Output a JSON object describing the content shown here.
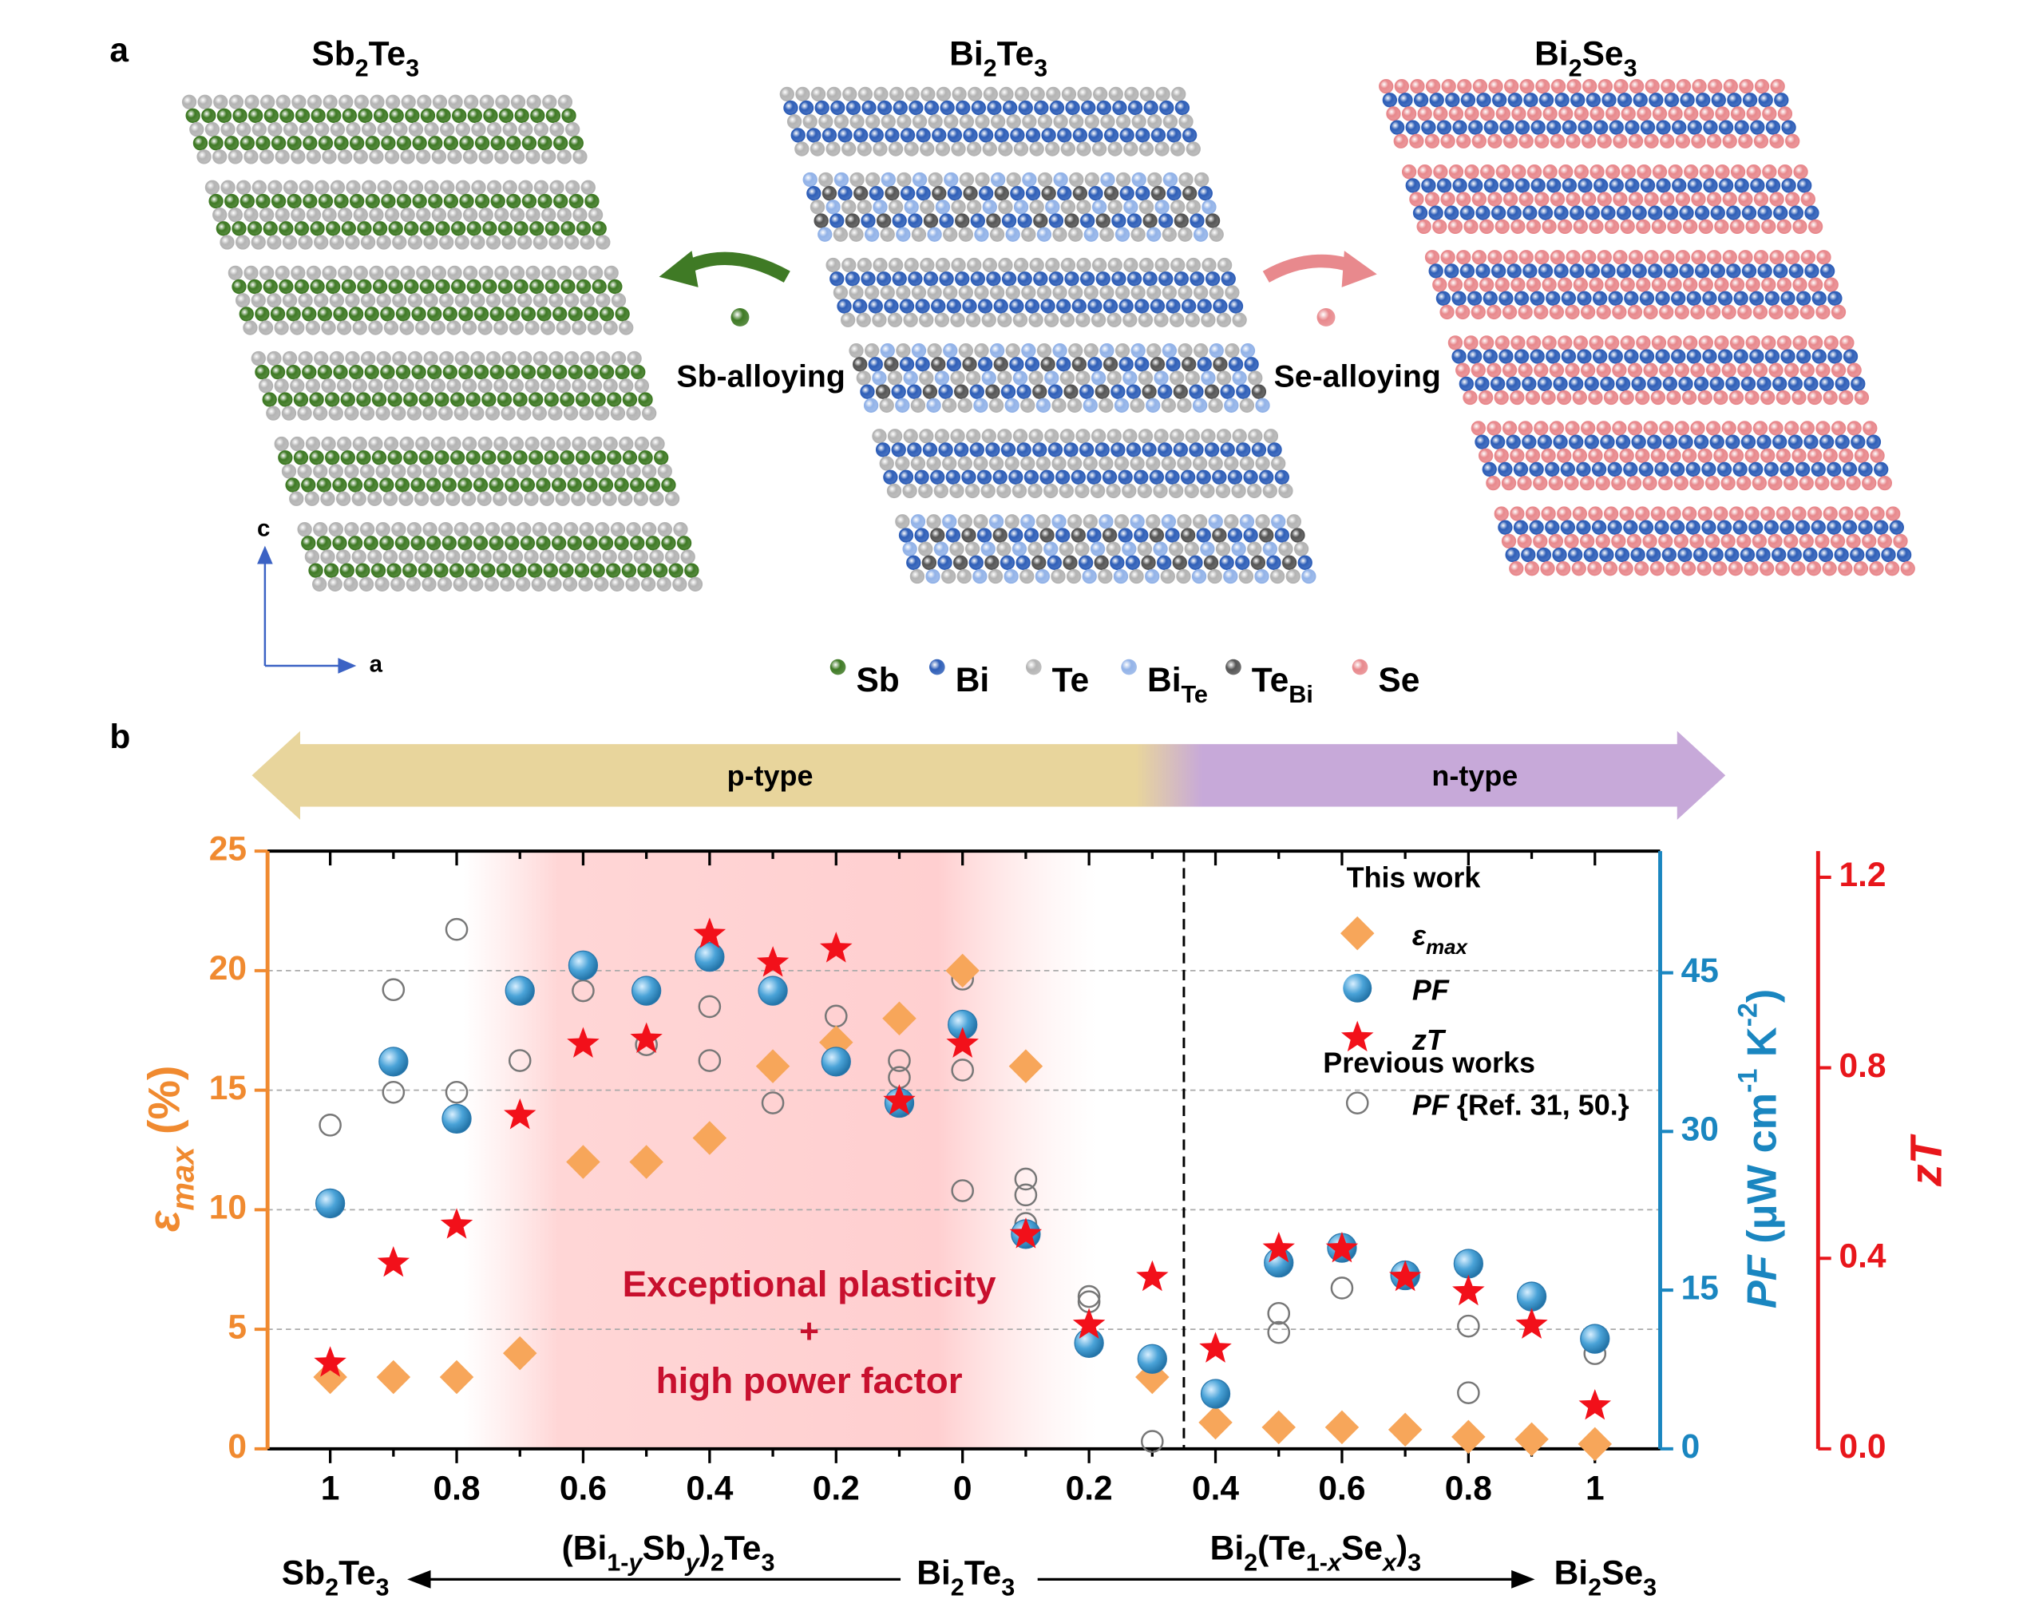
{
  "panel_labels": [
    "a",
    "b"
  ],
  "structures": [
    {
      "name": [
        [
          "Sb",
          ""
        ],
        [
          "2",
          "sub"
        ],
        [
          "Te",
          ""
        ],
        [
          "3",
          "sub"
        ]
      ]
    },
    {
      "name": [
        [
          "Bi",
          ""
        ],
        [
          "2",
          "sub"
        ],
        [
          "Te",
          ""
        ],
        [
          "3",
          "sub"
        ]
      ]
    },
    {
      "name": [
        [
          "Bi",
          ""
        ],
        [
          "2",
          "sub"
        ],
        [
          "Se",
          ""
        ],
        [
          "3",
          "sub"
        ]
      ]
    }
  ],
  "alloying": [
    "Sb-alloying",
    "Se-alloying"
  ],
  "axis_names": [
    "c",
    "a"
  ],
  "elements": [
    {
      "name": [
        [
          "Sb",
          ""
        ]
      ],
      "color": "#3f7a25"
    },
    {
      "name": [
        [
          "Bi",
          ""
        ]
      ],
      "color": "#2f5fb8"
    },
    {
      "name": [
        [
          "Te",
          ""
        ]
      ],
      "color": "#b4b4b4"
    },
    {
      "name": [
        [
          "Bi",
          ""
        ],
        [
          "Te",
          "sub"
        ]
      ],
      "color": "#93b3e8"
    },
    {
      "name": [
        [
          "Te",
          ""
        ],
        [
          "Bi",
          "sub"
        ]
      ],
      "color": "#555555"
    },
    {
      "name": [
        [
          "Se",
          ""
        ]
      ],
      "color": "#e8898d"
    }
  ],
  "chart_data": {
    "type": "scatter",
    "type_labels": [
      "p-type",
      "n-type"
    ],
    "type_colors": [
      "#e8d59c",
      "#c7a9d9"
    ],
    "annotation": [
      "Exceptional plasticity",
      "+",
      "high power factor"
    ],
    "categories": [
      "1",
      null,
      "0.8",
      null,
      "0.6",
      null,
      "0.4",
      null,
      "0.2",
      null,
      "0",
      null,
      "0.2",
      null,
      "0.4",
      null,
      "0.6",
      null,
      "0.8",
      null,
      "1"
    ],
    "ylabel": [
      [
        "ε",
        "i"
      ],
      [
        "max",
        "subi"
      ],
      [
        " (%)",
        ""
      ]
    ],
    "y2label": [
      [
        "PF",
        "i"
      ],
      [
        " (μW cm",
        ""
      ],
      [
        "-1",
        "sup"
      ],
      [
        " K",
        ""
      ],
      [
        "-2",
        "sup"
      ],
      [
        ")",
        ""
      ]
    ],
    "y3label": [
      [
        "zT",
        "i"
      ]
    ],
    "ylim": [
      0,
      25
    ],
    "yticks": [
      0,
      5,
      10,
      15,
      20,
      25
    ],
    "y2lim": [
      0,
      56.5
    ],
    "y2ticks": [
      0,
      15,
      30,
      45
    ],
    "y3lim": [
      0,
      1.255
    ],
    "y3ticks": [
      {
        "value": 0,
        "label": "0.0"
      },
      {
        "value": 0.4,
        "label": "0.4"
      },
      {
        "value": 0.8,
        "label": "0.8"
      },
      {
        "value": 1.2,
        "label": "1.2"
      }
    ],
    "axis_colors": [
      "#f08a30",
      "#1a86c0",
      "#e8161b"
    ],
    "grid": true,
    "legend_titles": [
      "This work",
      "Previous works"
    ],
    "series": [
      {
        "name": [
          [
            "ε",
            "i"
          ],
          [
            "max",
            "subi"
          ]
        ],
        "color": "#f7a65a",
        "marker": "diamond",
        "axis": "y",
        "values": [
          3,
          3,
          3,
          4,
          12,
          12,
          13,
          16,
          17,
          18,
          20,
          16,
          null,
          3,
          1.1,
          0.9,
          0.9,
          0.8,
          0.5,
          0.4,
          0.2
        ]
      },
      {
        "name": [
          [
            "PF",
            "i"
          ]
        ],
        "color": "#4aa3d8",
        "marker": "sphere",
        "axis": "y2",
        "values": [
          23.2,
          36.6,
          31.2,
          43.3,
          45.7,
          43.3,
          46.5,
          43.3,
          36.6,
          32.7,
          40.1,
          20.3,
          10.0,
          8.5,
          5.2,
          17.6,
          19.0,
          16.4,
          17.5,
          14.4,
          10.4
        ]
      },
      {
        "name": [
          [
            "zT",
            "i"
          ]
        ],
        "color": "#f2101a",
        "marker": "star",
        "axis": "y3",
        "values": [
          0.18,
          0.39,
          0.47,
          0.7,
          0.85,
          0.86,
          1.08,
          1.02,
          1.05,
          0.73,
          0.85,
          0.45,
          0.26,
          0.36,
          0.21,
          0.42,
          0.42,
          0.36,
          0.33,
          0.26,
          0.09
        ]
      },
      {
        "name": [
          [
            "PF",
            "i"
          ],
          [
            " {Ref. 31, 50.}",
            ""
          ]
        ],
        "color": "#777777",
        "marker": "open-circle",
        "axis": "y2",
        "values": [
          [
            30.6
          ],
          [
            43.4,
            33.7
          ],
          [
            49.1,
            33.7
          ],
          [
            36.7
          ],
          [
            43.3
          ],
          [
            38.2
          ],
          [
            41.8,
            36.7
          ],
          [
            32.7
          ],
          [
            40.9
          ],
          [
            36.7,
            35.1,
            32.7
          ],
          [
            44.4,
            35.8,
            24.4
          ],
          [
            25.5,
            24.0,
            21.3
          ],
          [
            14.4,
            13.9
          ],
          [
            0.7
          ],
          [],
          [
            12.8,
            11.0
          ],
          [
            15.2
          ],
          [
            16.6
          ],
          [
            11.6,
            5.3
          ],
          [],
          [
            9.0
          ]
        ]
      }
    ],
    "bottom_labels": [
      [
        [
          "Sb",
          ""
        ],
        [
          "2",
          "sub"
        ],
        [
          "Te",
          ""
        ],
        [
          "3",
          "sub"
        ]
      ],
      [
        [
          "(Bi",
          ""
        ],
        [
          "1-",
          "sub"
        ],
        [
          "y",
          "subi"
        ],
        [
          "Sb",
          ""
        ],
        [
          "y",
          "subi"
        ],
        [
          ")",
          ""
        ],
        [
          "2",
          "sub"
        ],
        [
          "Te",
          ""
        ],
        [
          "3",
          "sub"
        ]
      ],
      [
        [
          "Bi",
          ""
        ],
        [
          "2",
          "sub"
        ],
        [
          "Te",
          ""
        ],
        [
          "3",
          "sub"
        ]
      ],
      [
        [
          "Bi",
          ""
        ],
        [
          "2",
          "sub"
        ],
        [
          "(Te",
          ""
        ],
        [
          "1-",
          "sub"
        ],
        [
          "x",
          "subi"
        ],
        [
          "Se",
          ""
        ],
        [
          "x",
          "subi"
        ],
        [
          ")",
          ""
        ],
        [
          "3",
          "sub"
        ]
      ],
      [
        [
          "Bi",
          ""
        ],
        [
          "2",
          "sub"
        ],
        [
          "Se",
          ""
        ],
        [
          "3",
          "sub"
        ]
      ]
    ]
  }
}
